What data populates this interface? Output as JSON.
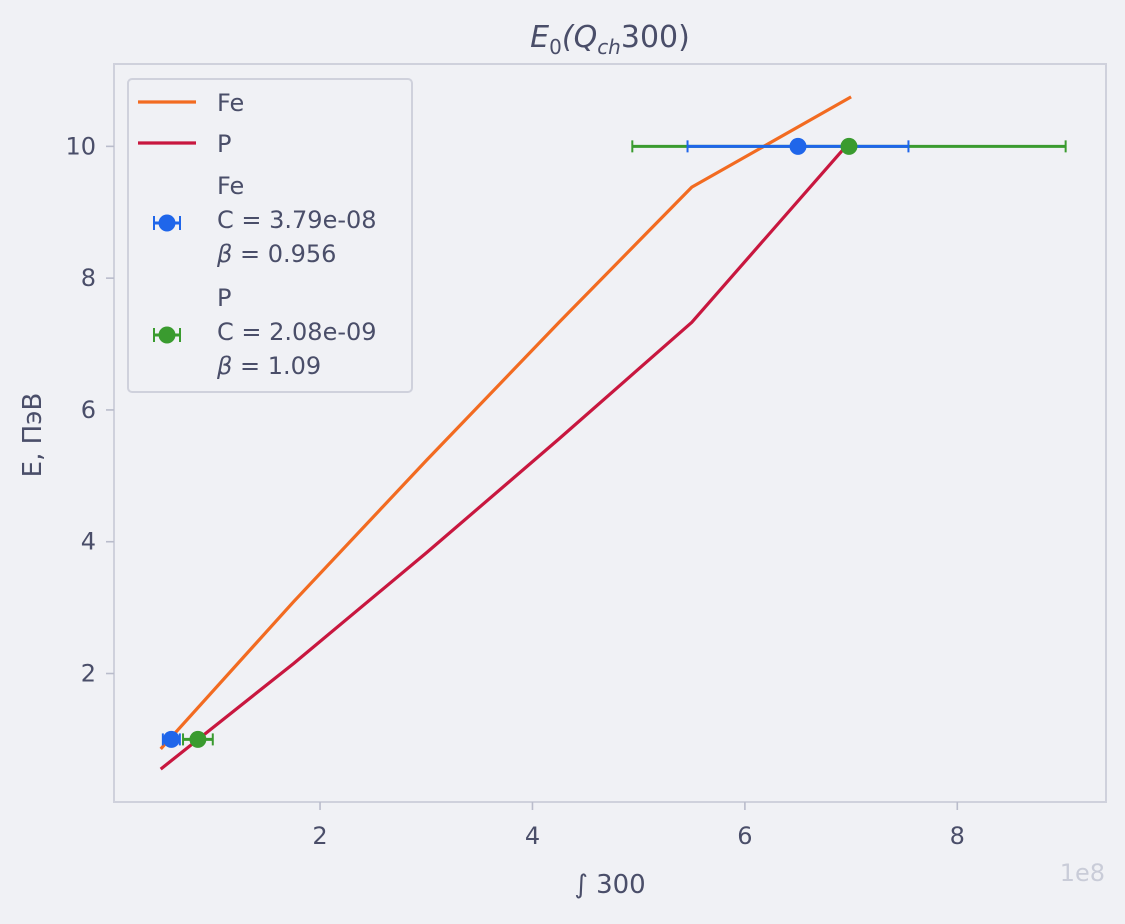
{
  "chart_data": {
    "type": "line",
    "title": {
      "base": "E",
      "sub0": "0",
      "open": "(Q",
      "sub1": "ch",
      "close": "300)"
    },
    "xlabel": "∫ 300",
    "ylabel": "E, ПэВ",
    "x_offset_label": "1e8",
    "x_scale": 100000000,
    "xlim": [
      0.06,
      9.4
    ],
    "ylim": [
      0.05,
      11.25
    ],
    "x_ticks": [
      2,
      4,
      6,
      8
    ],
    "x_tick_labels": [
      "2",
      "4",
      "6",
      "8"
    ],
    "y_ticks": [
      2,
      4,
      6,
      8,
      10
    ],
    "y_tick_labels": [
      "2",
      "4",
      "6",
      "8",
      "10"
    ],
    "grid": false,
    "legend_position": "top-left",
    "colors": {
      "fe_line": "#f26b21",
      "p_line": "#c8173f",
      "fe_points": "#1f66ea",
      "p_points": "#3a9b2f",
      "frame": "#cfd1dc",
      "text": "#4a4e69",
      "background": "#f0f1f5"
    },
    "lines": [
      {
        "name": "Fe",
        "x": [
          0.5,
          1.75,
          3.0,
          4.25,
          5.5,
          7.0
        ],
        "y": [
          0.856,
          3.088,
          5.232,
          7.328,
          9.382,
          10.75
        ]
      },
      {
        "name": "P",
        "x": [
          0.5,
          1.75,
          3.0,
          4.25,
          5.5,
          6.95
        ],
        "y": [
          0.55,
          2.15,
          3.83,
          5.56,
          7.33,
          10.0
        ]
      }
    ],
    "points": [
      {
        "name": "Fe",
        "lines": [
          "Fe",
          "C = 3.79e-08",
          "β = 0.956"
        ],
        "x": [
          0.6,
          6.5
        ],
        "y": [
          1.0,
          10.0
        ],
        "xerr": [
          0.08,
          1.04
        ]
      },
      {
        "name": "P",
        "lines": [
          "P",
          "C = 2.08e-09",
          "β = 1.09"
        ],
        "x": [
          0.85,
          6.98
        ],
        "y": [
          1.0,
          10.0
        ],
        "xerr": [
          0.14,
          2.04
        ]
      }
    ]
  }
}
